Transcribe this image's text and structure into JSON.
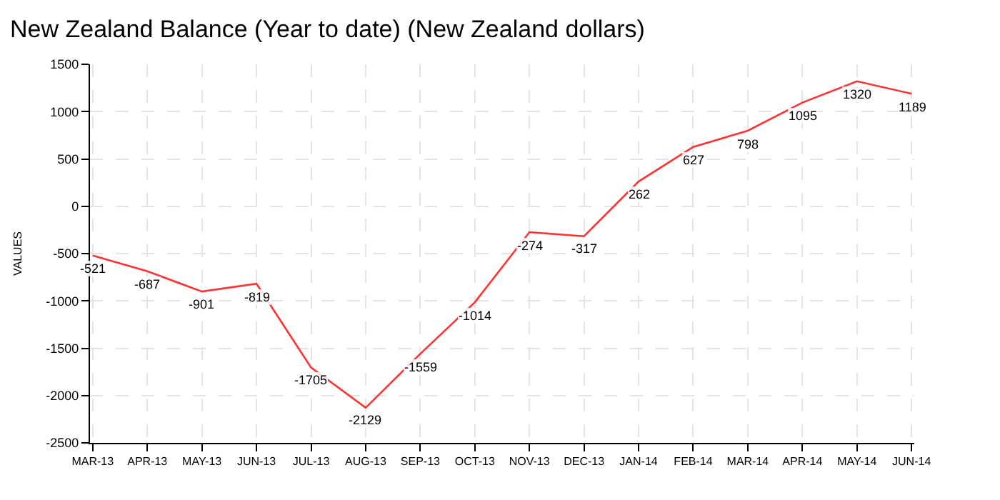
{
  "chart_data": {
    "type": "line",
    "title": "New Zealand Balance (Year to date) (New Zealand dollars)",
    "ylabel": "VALUES",
    "categories": [
      "MAR-13",
      "APR-13",
      "MAY-13",
      "JUN-13",
      "JUL-13",
      "AUG-13",
      "SEP-13",
      "OCT-13",
      "NOV-13",
      "DEC-13",
      "JAN-14",
      "FEB-14",
      "MAR-14",
      "APR-14",
      "MAY-14",
      "JUN-14"
    ],
    "series": [
      {
        "color": "#ff3333",
        "values": [
          -521,
          -687,
          -901,
          -819,
          -1705,
          -2129,
          -1559,
          -1014,
          -274,
          -317,
          262,
          627,
          798,
          1095,
          1320,
          1189
        ]
      }
    ],
    "ylim": [
      -2500,
      1500
    ],
    "yticks": [
      -2500,
      -2000,
      -1500,
      -1000,
      -500,
      0,
      500,
      1000,
      1500
    ],
    "grid": true,
    "data_labels": true,
    "marker": "none",
    "line_style": "solid"
  }
}
